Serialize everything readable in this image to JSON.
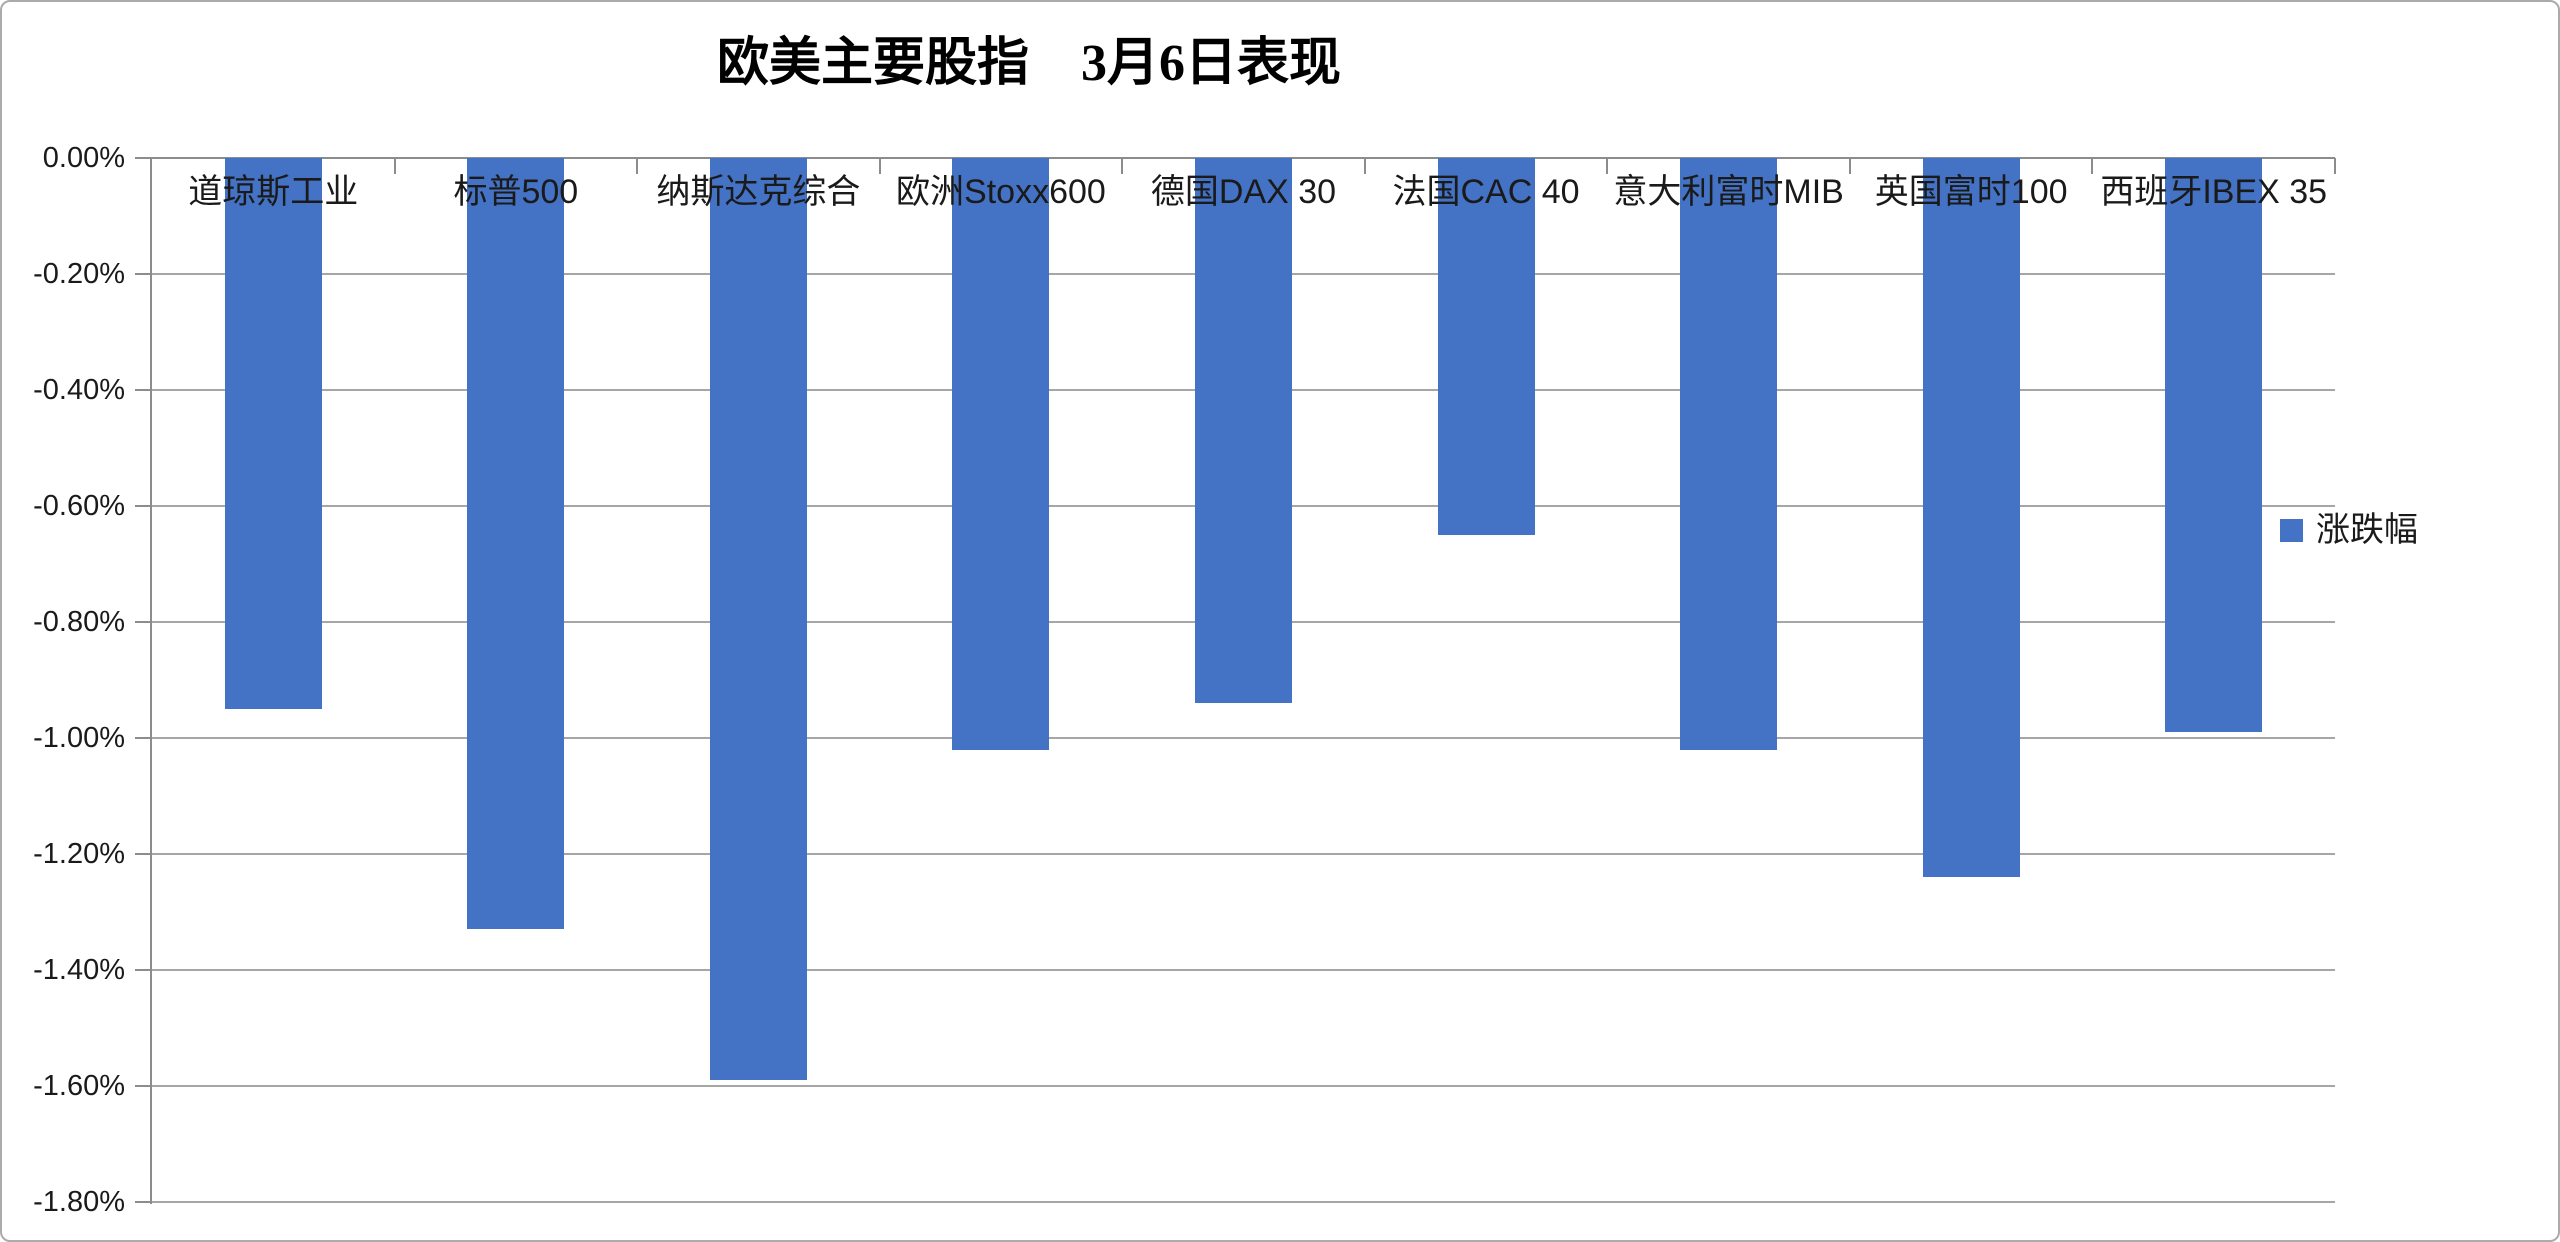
{
  "chart_data": {
    "type": "bar",
    "title": "欧美主要股指　3月6日表现",
    "categories": [
      "道琼斯工业",
      "标普500",
      "纳斯达克综合",
      "欧洲Stoxx600",
      "德国DAX 30",
      "法国CAC 40",
      "意大利富时MIB",
      "英国富时100",
      "西班牙IBEX 35"
    ],
    "series": [
      {
        "name": "涨跌幅",
        "values": [
          -0.95,
          -1.33,
          -1.59,
          -1.02,
          -0.94,
          -0.65,
          -1.02,
          -1.24,
          -0.99
        ]
      }
    ],
    "legend": {
      "label": "涨跌幅",
      "position": "right"
    },
    "y_axis": {
      "min": -1.8,
      "max": 0,
      "step": 0.2,
      "format": "percent",
      "tick_labels": [
        "0.00%",
        "-0.20%",
        "-0.40%",
        "-0.60%",
        "-0.80%",
        "-1.00%",
        "-1.20%",
        "-1.40%",
        "-1.60%",
        "-1.80%"
      ]
    },
    "grid": true,
    "xlabel": "",
    "ylabel": "",
    "colors": {
      "bar": "#4472C4",
      "gridline": "#A6A6A6",
      "axis": "#8C8C8C",
      "text": "#1A1A1A",
      "title": "#000000",
      "border": "#ABABAB",
      "background": "#FFFFFF"
    }
  }
}
